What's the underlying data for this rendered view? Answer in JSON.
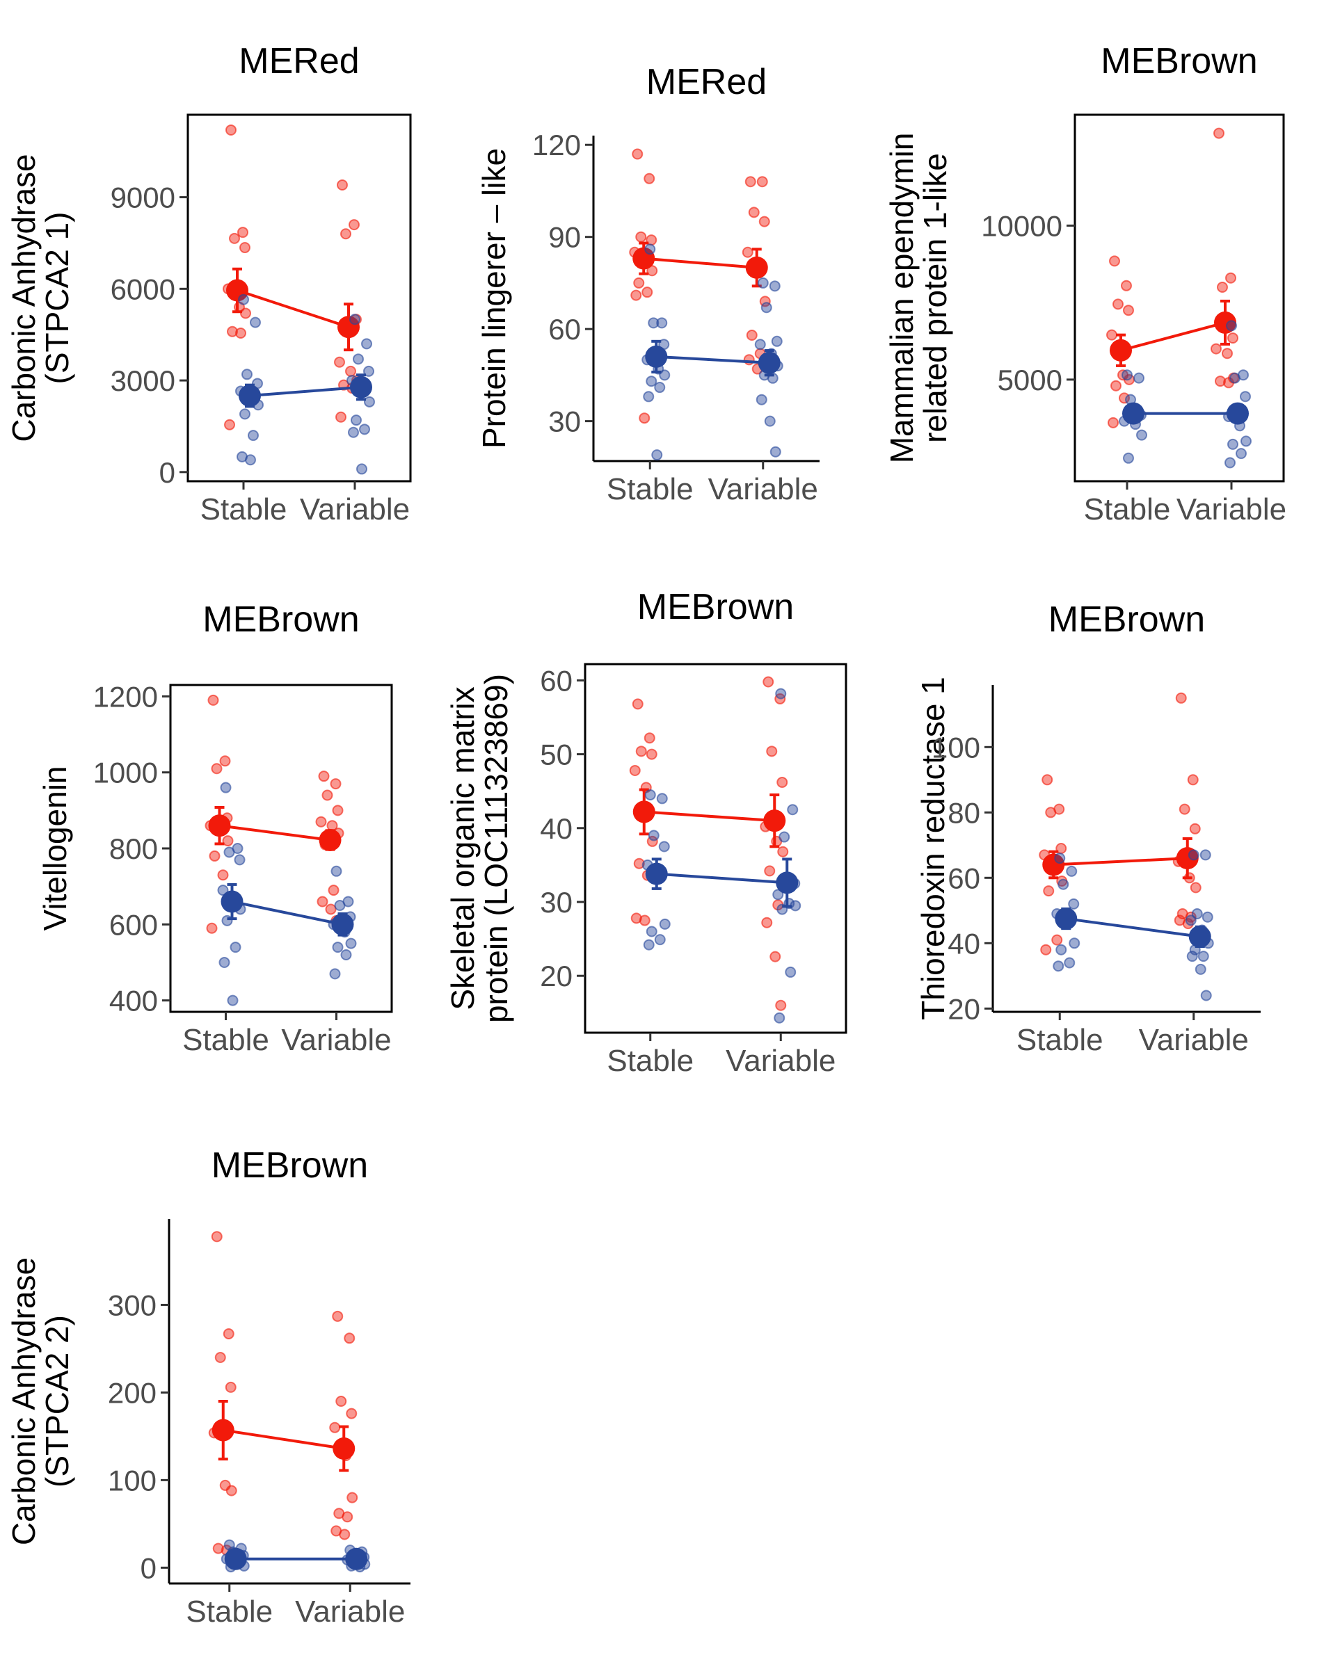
{
  "colors": {
    "red": "#f21a0a",
    "blue": "#27489b",
    "axis": "#000000",
    "tick_text": "#4d4d4d"
  },
  "chart_data": [
    {
      "type": "scatter",
      "title": "MERed",
      "ylabel_lines": [
        "Carbonic Anhydrase",
        "(STPCA2 1)"
      ],
      "categories": [
        "Stable",
        "Variable"
      ],
      "ylim": [
        -300,
        11700
      ],
      "yticks": [
        0,
        3000,
        6000,
        9000
      ],
      "ytick_labels": [
        "0",
        "3000",
        "6000",
        "9000"
      ],
      "box": "full",
      "grid": false,
      "legend": "none",
      "series": [
        {
          "color": "red",
          "means": [
            5950,
            4750
          ],
          "errors": [
            700,
            750
          ],
          "points": [
            [
              11200,
              7850,
              7650,
              7350,
              6000,
              5400,
              5200,
              4600,
              4550,
              1550
            ],
            [
              9400,
              8100,
              7800,
              5000,
              3600,
              3300,
              3000,
              2850,
              2750,
              1800
            ]
          ]
        },
        {
          "color": "blue",
          "means": [
            2500,
            2780
          ],
          "errors": [
            350,
            400
          ],
          "points": [
            [
              5650,
              4900,
              3200,
              2900,
              2650,
              2400,
              2200,
              1900,
              1200,
              500,
              400
            ],
            [
              5000,
              4200,
              3700,
              3300,
              3000,
              2700,
              2300,
              1700,
              1400,
              1300,
              100
            ]
          ]
        }
      ]
    },
    {
      "type": "scatter",
      "title": "MERed",
      "ylabel_lines": [
        "Protein lingerer – like"
      ],
      "categories": [
        "Stable",
        "Variable"
      ],
      "ylim": [
        17,
        123
      ],
      "yticks": [
        30,
        60,
        90,
        120
      ],
      "ytick_labels": [
        "30",
        "60",
        "90",
        "120"
      ],
      "box": "l",
      "grid": false,
      "legend": "none",
      "series": [
        {
          "color": "red",
          "means": [
            83,
            80
          ],
          "errors": [
            5,
            6
          ],
          "points": [
            [
              117,
              109,
              90,
              89,
              85,
              82,
              79,
              75,
              72,
              71,
              31
            ],
            [
              108,
              108,
              98,
              95,
              85,
              80,
              69,
              58,
              52,
              50,
              47
            ]
          ]
        },
        {
          "color": "blue",
          "means": [
            51,
            49
          ],
          "errors": [
            5,
            4
          ],
          "points": [
            [
              86,
              62,
              62,
              55,
              50,
              47,
              45,
              43,
              41,
              38,
              19
            ],
            [
              75,
              74,
              67,
              56,
              55,
              52,
              48,
              45,
              44,
              37,
              30,
              20
            ]
          ]
        }
      ]
    },
    {
      "type": "scatter",
      "title": "MEBrown",
      "ylabel_lines": [
        "Mammalian ependymin",
        "related protein 1-like"
      ],
      "categories": [
        "Stable",
        "Variable"
      ],
      "ylim": [
        1700,
        13600
      ],
      "yticks": [
        5000,
        10000
      ],
      "ytick_labels": [
        "5000",
        "10000"
      ],
      "box": "full",
      "grid": false,
      "legend": "none",
      "series": [
        {
          "color": "red",
          "means": [
            5950,
            6850
          ],
          "errors": [
            500,
            700
          ],
          "points": [
            [
              8850,
              8050,
              7450,
              7250,
              6450,
              5150,
              5000,
              4800,
              4400,
              3600
            ],
            [
              13000,
              8300,
              8000,
              6350,
              6000,
              5850,
              5050,
              4950,
              4900
            ]
          ]
        },
        {
          "color": "blue",
          "means": [
            3900,
            3900
          ],
          "errors": [
            250,
            250
          ],
          "points": [
            [
              5150,
              5050,
              4350,
              3850,
              3650,
              3550,
              3200,
              2450
            ],
            [
              6750,
              5150,
              5050,
              4450,
              3800,
              3500,
              3000,
              2900,
              2600,
              2300
            ]
          ]
        }
      ]
    },
    {
      "type": "scatter",
      "title": "MEBrown",
      "ylabel_lines": [
        "Vitellogenin"
      ],
      "categories": [
        "Stable",
        "Variable"
      ],
      "ylim": [
        370,
        1230
      ],
      "yticks": [
        400,
        600,
        800,
        1000,
        1200
      ],
      "ytick_labels": [
        "400",
        "600",
        "800",
        "1000",
        "1200"
      ],
      "box": "full",
      "grid": false,
      "legend": "none",
      "series": [
        {
          "color": "red",
          "means": [
            860,
            822
          ],
          "errors": [
            48,
            25
          ],
          "points": [
            [
              1190,
              1030,
              1010,
              880,
              860,
              850,
              820,
              780,
              730,
              590
            ],
            [
              990,
              970,
              940,
              900,
              870,
              860,
              840,
              810,
              690,
              660,
              640,
              610
            ]
          ]
        },
        {
          "color": "blue",
          "means": [
            660,
            600
          ],
          "errors": [
            45,
            28
          ],
          "points": [
            [
              960,
              800,
              790,
              770,
              690,
              660,
              640,
              610,
              540,
              500,
              400
            ],
            [
              740,
              660,
              650,
              620,
              600,
              580,
              550,
              540,
              520,
              470
            ]
          ]
        }
      ]
    },
    {
      "type": "scatter",
      "title": "MEBrown",
      "ylabel_lines": [
        "Skeletal organic matrix",
        "protein (LOC111323869)"
      ],
      "categories": [
        "Stable",
        "Variable"
      ],
      "ylim": [
        12.3,
        62.2
      ],
      "yticks": [
        20,
        30,
        40,
        50,
        60
      ],
      "ytick_labels": [
        "20",
        "30",
        "40",
        "50",
        "60"
      ],
      "box": "full",
      "grid": false,
      "legend": "none",
      "series": [
        {
          "color": "red",
          "means": [
            42.2,
            41
          ],
          "errors": [
            3,
            3.5
          ],
          "points": [
            [
              56.8,
              52.2,
              50.4,
              50,
              47.8,
              45.5,
              38.2,
              35.2,
              33.6,
              27.8,
              27.5
            ],
            [
              59.8,
              57.5,
              50.4,
              46.2,
              40.2,
              38.2,
              36.8,
              34.2,
              29.6,
              27.2,
              22.6,
              16
            ]
          ]
        },
        {
          "color": "blue",
          "means": [
            33.8,
            32.6
          ],
          "errors": [
            2,
            3.2
          ],
          "points": [
            [
              44.5,
              44,
              39,
              37.5,
              35,
              33.5,
              27,
              26,
              24.9,
              24.2
            ],
            [
              58.2,
              42.5,
              38.8,
              32.5,
              31,
              29.8,
              29.5,
              29,
              20.5,
              14.3
            ]
          ]
        }
      ]
    },
    {
      "type": "scatter",
      "title": "MEBrown",
      "ylabel_lines": [
        "Thioredoxin reductase 1"
      ],
      "categories": [
        "Stable",
        "Variable"
      ],
      "ylim": [
        19,
        119
      ],
      "yticks": [
        20,
        40,
        60,
        80,
        100
      ],
      "ytick_labels": [
        "20",
        "40",
        "60",
        "80",
        "100"
      ],
      "box": "l",
      "grid": false,
      "legend": "none",
      "series": [
        {
          "color": "red",
          "means": [
            64,
            66
          ],
          "errors": [
            4,
            6
          ],
          "points": [
            [
              90,
              81,
              80,
              69,
              67,
              65,
              59,
              56,
              41,
              38
            ],
            [
              115,
              90,
              81,
              75,
              65,
              60,
              57,
              49,
              48,
              47,
              46
            ]
          ]
        },
        {
          "color": "blue",
          "means": [
            47.5,
            42
          ],
          "errors": [
            3,
            3
          ],
          "points": [
            [
              66,
              62,
              58,
              52,
              49,
              46,
              40,
              38,
              34,
              33
            ],
            [
              67,
              67,
              49,
              48,
              47,
              44,
              40,
              38,
              36,
              36,
              32,
              24
            ]
          ]
        }
      ]
    },
    {
      "type": "scatter",
      "title": "MEBrown",
      "ylabel_lines": [
        "Carbonic Anhydrase",
        "(STPCA2 2)"
      ],
      "categories": [
        "Stable",
        "Variable"
      ],
      "ylim": [
        -18,
        398
      ],
      "yticks": [
        0,
        100,
        200,
        300
      ],
      "ytick_labels": [
        "0",
        "100",
        "200",
        "300"
      ],
      "box": "l",
      "grid": false,
      "legend": "none",
      "series": [
        {
          "color": "red",
          "means": [
            157,
            136
          ],
          "errors": [
            33,
            25
          ],
          "points": [
            [
              378,
              267,
              240,
              206,
              154,
              94,
              88,
              22,
              20
            ],
            [
              287,
              262,
              190,
              176,
              160,
              128,
              80,
              62,
              58,
              42,
              38
            ]
          ]
        },
        {
          "color": "blue",
          "means": [
            10,
            10
          ],
          "errors": [
            4,
            4
          ],
          "points": [
            [
              26,
              22,
              18,
              14,
              10,
              6,
              2,
              1
            ],
            [
              20,
              18,
              15,
              12,
              9,
              6,
              4,
              2,
              1
            ]
          ]
        }
      ]
    }
  ]
}
